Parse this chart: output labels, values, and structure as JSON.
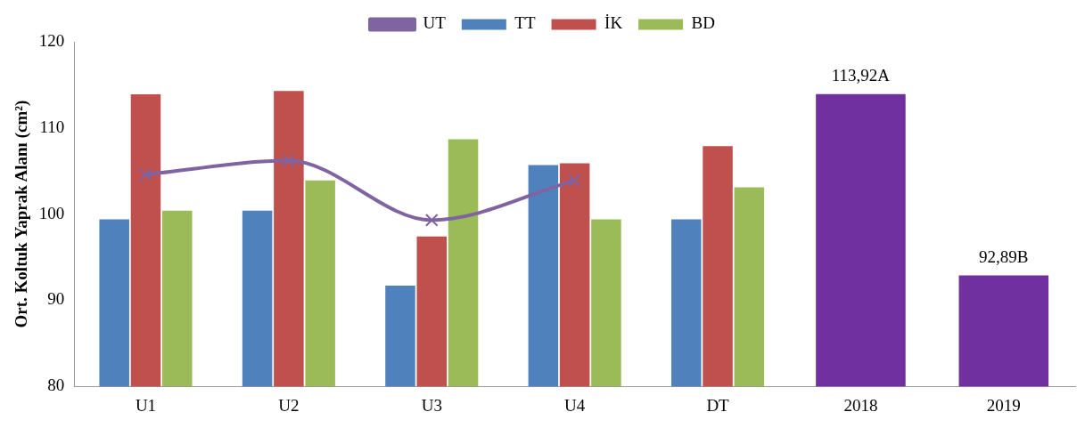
{
  "chart_data": {
    "type": "bar",
    "ylabel": "Ort. Koltuk Yaprak Alanı (cm²)",
    "categories": [
      "U1",
      "U2",
      "U3",
      "U4",
      "DT",
      "2018",
      "2019"
    ],
    "ylim": [
      80,
      120
    ],
    "yticks": [
      80,
      90,
      100,
      110,
      120
    ],
    "grid": false,
    "legend": "top",
    "series": [
      {
        "name": "TT",
        "color": "#4f81bd",
        "values": [
          99.4,
          100.4,
          91.7,
          105.7,
          99.4,
          null,
          null
        ]
      },
      {
        "name": "İK",
        "color": "#c0504d",
        "values": [
          113.9,
          114.3,
          97.4,
          105.9,
          107.9,
          null,
          null
        ]
      },
      {
        "name": "BD",
        "color": "#9bbb59",
        "values": [
          100.4,
          103.9,
          108.7,
          99.4,
          103.1,
          null,
          null
        ]
      },
      {
        "color": "#7030a0",
        "values": [
          null,
          null,
          null,
          null,
          null,
          113.92,
          92.89
        ],
        "value_labels": [
          null,
          null,
          null,
          null,
          null,
          "113,92A",
          "92,89B"
        ]
      },
      {
        "name": "UT",
        "type": "line",
        "color": "#8064a2",
        "marker": "cross",
        "line_style": "solid",
        "values": [
          104.6,
          106.2,
          99.3,
          103.9,
          null,
          null,
          null
        ]
      }
    ]
  }
}
